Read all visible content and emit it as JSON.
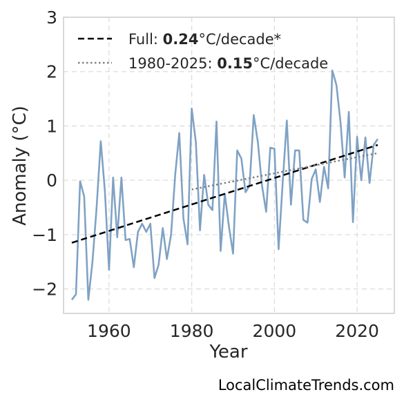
{
  "chart_data": {
    "type": "line",
    "xlabel": "Year",
    "ylabel": "Anomaly (°C)",
    "xlim": [
      1949,
      2029
    ],
    "ylim": [
      -2.45,
      3.0
    ],
    "xticks": [
      1960,
      1980,
      2000,
      2020
    ],
    "yticks": [
      -2,
      -1,
      0,
      1,
      2,
      3
    ],
    "ytick_labels": [
      "−2",
      "−1",
      "0",
      "1",
      "2",
      "3"
    ],
    "grid": true,
    "legend_position": "top-left",
    "legend": [
      {
        "prefix": "Full: ",
        "value": "0.24",
        "suffix": "°C/decade*",
        "style": "dashed",
        "color": "#000000"
      },
      {
        "prefix": "1980-2025: ",
        "value": "0.15",
        "suffix": "°C/decade",
        "style": "dotted",
        "color": "#808080"
      }
    ],
    "series": [
      {
        "color": "#7fa2c4",
        "x": [
          1951,
          1952,
          1953,
          1954,
          1955,
          1956,
          1957,
          1958,
          1959,
          1960,
          1961,
          1962,
          1963,
          1964,
          1965,
          1966,
          1967,
          1968,
          1969,
          1970,
          1971,
          1972,
          1973,
          1974,
          1975,
          1976,
          1977,
          1978,
          1979,
          1980,
          1981,
          1982,
          1983,
          1984,
          1985,
          1986,
          1987,
          1988,
          1989,
          1990,
          1991,
          1992,
          1993,
          1994,
          1995,
          1996,
          1997,
          1998,
          1999,
          2000,
          2001,
          2002,
          2003,
          2004,
          2005,
          2006,
          2007,
          2008,
          2009,
          2010,
          2011,
          2012,
          2013,
          2014,
          2015,
          2016,
          2017,
          2018,
          2019,
          2020,
          2021,
          2022,
          2023,
          2024,
          2025
        ],
        "y": [
          -2.2,
          -2.1,
          -0.02,
          -0.3,
          -2.2,
          -1.5,
          -0.5,
          0.72,
          -0.2,
          -1.65,
          0.05,
          -1.05,
          0.05,
          -1.1,
          -1.08,
          -1.6,
          -0.95,
          -0.8,
          -0.95,
          -0.8,
          -1.8,
          -1.55,
          -0.88,
          -1.45,
          -1.0,
          0.1,
          0.87,
          -0.7,
          -1.18,
          1.32,
          0.7,
          -0.92,
          0.1,
          -0.45,
          -0.55,
          1.08,
          -1.3,
          -0.25,
          -0.85,
          -1.35,
          0.55,
          0.4,
          -0.22,
          -0.1,
          1.2,
          0.7,
          -0.1,
          -0.58,
          0.6,
          0.58,
          -1.27,
          -0.05,
          1.1,
          -0.45,
          0.55,
          0.55,
          -0.73,
          -0.78,
          0.02,
          0.2,
          -0.4,
          0.25,
          -0.15,
          2.02,
          1.75,
          1.05,
          0.05,
          1.26,
          -0.77,
          0.8,
          0.0,
          0.79,
          -0.05,
          0.65,
          0.76
        ]
      },
      {
        "name": "Full",
        "style": "dashed",
        "color": "#000000",
        "x": [
          1951,
          2025
        ],
        "y": [
          -1.15,
          0.65
        ]
      },
      {
        "name": "1980-2025",
        "style": "dotted",
        "color": "#808080",
        "x": [
          1980,
          2025
        ],
        "y": [
          -0.17,
          0.5
        ]
      }
    ]
  },
  "watermark": "LocalClimateTrends.com"
}
